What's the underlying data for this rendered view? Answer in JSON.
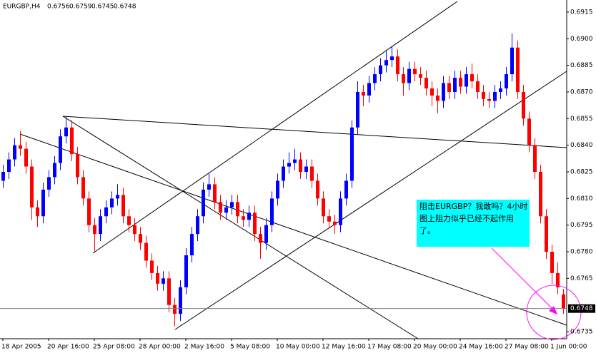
{
  "chart_data": {
    "type": "candlestick",
    "title": "EURGBP,H4",
    "up_color": "#0000ff",
    "down_color": "#ff0000",
    "ylim": [
      0.6731,
      0.6921
    ],
    "yticks": [
      0.6735,
      0.6765,
      {
        "value": 0.678,
        "label": "0.6780"
      },
      0.6795,
      {
        "value": 0.681,
        "label": "0.6810"
      },
      0.6825,
      {
        "value": 0.684,
        "label": "0.6840"
      },
      0.6855,
      {
        "value": 0.687,
        "label": "0.6870"
      },
      0.6885,
      {
        "value": 0.69,
        "label": "0.6900"
      },
      0.6915
    ],
    "xticks": [
      {
        "value": 0,
        "label": "18 Apr 2005"
      },
      {
        "value": 8,
        "label": "20 Apr 16:00"
      },
      {
        "value": 16,
        "label": "25 Apr 08:00"
      },
      {
        "value": 24,
        "label": "28 Apr 00:00"
      },
      {
        "value": 32,
        "label": "2 May 16:00"
      },
      {
        "value": 40,
        "label": "5 May 08:00"
      },
      {
        "value": 48,
        "label": "10 May 00:00"
      },
      {
        "value": 56,
        "label": "12 May 16:00"
      },
      {
        "value": 64,
        "label": "17 May 08:00"
      },
      {
        "value": 72,
        "label": "20 May 00:00"
      },
      {
        "value": 80,
        "label": "24 May 16:00"
      },
      {
        "value": 88,
        "label": "27 May 08:00"
      },
      {
        "value": 96,
        "label": "1 Jun 00:00"
      }
    ],
    "annotation": [
      "阻击EURGBP？我敢吗？4小时",
      "图上阻力似乎已经不起作用",
      "了。"
    ],
    "candles": [
      [
        0.682,
        0.6829,
        0.6816,
        0.6825
      ],
      [
        0.6825,
        0.6836,
        0.6821,
        0.6832
      ],
      [
        0.6832,
        0.6844,
        0.6828,
        0.684
      ],
      [
        0.684,
        0.6848,
        0.6834,
        0.6838
      ],
      [
        0.6838,
        0.6842,
        0.6824,
        0.6828
      ],
      [
        0.6828,
        0.6832,
        0.6798,
        0.6805
      ],
      [
        0.6805,
        0.6809,
        0.6794,
        0.68
      ],
      [
        0.68,
        0.6819,
        0.6796,
        0.6815
      ],
      [
        0.6815,
        0.6826,
        0.6811,
        0.6822
      ],
      [
        0.6822,
        0.6834,
        0.6818,
        0.683
      ],
      [
        0.683,
        0.6849,
        0.6826,
        0.6845
      ],
      [
        0.6845,
        0.6856,
        0.6841,
        0.685
      ],
      [
        0.685,
        0.6854,
        0.6831,
        0.6835
      ],
      [
        0.6835,
        0.6839,
        0.6818,
        0.6822
      ],
      [
        0.6822,
        0.6826,
        0.6806,
        0.681
      ],
      [
        0.681,
        0.6814,
        0.6791,
        0.6795
      ],
      [
        0.6795,
        0.6799,
        0.678,
        0.679
      ],
      [
        0.679,
        0.6804,
        0.6786,
        0.68
      ],
      [
        0.68,
        0.6809,
        0.6796,
        0.6805
      ],
      [
        0.6805,
        0.6814,
        0.6801,
        0.681
      ],
      [
        0.681,
        0.6818,
        0.6806,
        0.6812
      ],
      [
        0.6812,
        0.6816,
        0.6796,
        0.68
      ],
      [
        0.68,
        0.6804,
        0.6791,
        0.6795
      ],
      [
        0.6795,
        0.6799,
        0.6786,
        0.679
      ],
      [
        0.679,
        0.6794,
        0.6781,
        0.6785
      ],
      [
        0.6785,
        0.6789,
        0.6771,
        0.6775
      ],
      [
        0.6775,
        0.6779,
        0.6764,
        0.6768
      ],
      [
        0.6768,
        0.6772,
        0.6758,
        0.6762
      ],
      [
        0.6762,
        0.6769,
        0.6758,
        0.6765
      ],
      [
        0.6765,
        0.6769,
        0.6746,
        0.675
      ],
      [
        0.675,
        0.6754,
        0.6738,
        0.6745
      ],
      [
        0.6745,
        0.6764,
        0.6741,
        0.676
      ],
      [
        0.676,
        0.6782,
        0.6756,
        0.6778
      ],
      [
        0.6778,
        0.6794,
        0.6774,
        0.679
      ],
      [
        0.679,
        0.6804,
        0.6786,
        0.68
      ],
      [
        0.68,
        0.6819,
        0.6796,
        0.6815
      ],
      [
        0.6815,
        0.6824,
        0.6811,
        0.6818
      ],
      [
        0.6818,
        0.6822,
        0.6804,
        0.6808
      ],
      [
        0.6808,
        0.6812,
        0.6798,
        0.6802
      ],
      [
        0.6802,
        0.6809,
        0.6798,
        0.6805
      ],
      [
        0.6805,
        0.6812,
        0.6801,
        0.6808
      ],
      [
        0.6808,
        0.6812,
        0.6796,
        0.68
      ],
      [
        0.68,
        0.6804,
        0.6794,
        0.6798
      ],
      [
        0.6798,
        0.6806,
        0.6794,
        0.6802
      ],
      [
        0.6802,
        0.6806,
        0.6786,
        0.679
      ],
      [
        0.679,
        0.6794,
        0.6776,
        0.6785
      ],
      [
        0.6785,
        0.6799,
        0.6781,
        0.6795
      ],
      [
        0.6795,
        0.6814,
        0.6791,
        0.681
      ],
      [
        0.681,
        0.6824,
        0.6806,
        0.682
      ],
      [
        0.682,
        0.6832,
        0.6816,
        0.6828
      ],
      [
        0.6828,
        0.6836,
        0.6824,
        0.683
      ],
      [
        0.683,
        0.6838,
        0.6826,
        0.6832
      ],
      [
        0.6832,
        0.6836,
        0.6821,
        0.6825
      ],
      [
        0.6825,
        0.6832,
        0.6821,
        0.6828
      ],
      [
        0.6828,
        0.6832,
        0.6816,
        0.682
      ],
      [
        0.682,
        0.6824,
        0.6806,
        0.681
      ],
      [
        0.681,
        0.6814,
        0.6796,
        0.68
      ],
      [
        0.68,
        0.6804,
        0.6793,
        0.6797
      ],
      [
        0.6797,
        0.6801,
        0.679,
        0.6795
      ],
      [
        0.6795,
        0.6814,
        0.6791,
        0.681
      ],
      [
        0.681,
        0.6824,
        0.6806,
        0.682
      ],
      [
        0.682,
        0.6854,
        0.6816,
        0.685
      ],
      [
        0.685,
        0.6876,
        0.6846,
        0.687
      ],
      [
        0.687,
        0.6874,
        0.6862,
        0.6868
      ],
      [
        0.6868,
        0.6879,
        0.6864,
        0.6875
      ],
      [
        0.6875,
        0.6884,
        0.6871,
        0.688
      ],
      [
        0.688,
        0.6889,
        0.6876,
        0.6885
      ],
      [
        0.6885,
        0.6893,
        0.6881,
        0.6888
      ],
      [
        0.6888,
        0.6896,
        0.6884,
        0.689
      ],
      [
        0.689,
        0.6894,
        0.6876,
        0.688
      ],
      [
        0.688,
        0.6884,
        0.6868,
        0.6875
      ],
      [
        0.6875,
        0.6887,
        0.6871,
        0.6883
      ],
      [
        0.6883,
        0.6887,
        0.6876,
        0.688
      ],
      [
        0.688,
        0.6884,
        0.6874,
        0.6878
      ],
      [
        0.6878,
        0.6882,
        0.6868,
        0.6872
      ],
      [
        0.6872,
        0.6876,
        0.6862,
        0.6868
      ],
      [
        0.6868,
        0.6872,
        0.6858,
        0.6865
      ],
      [
        0.6865,
        0.6879,
        0.6861,
        0.6875
      ],
      [
        0.6875,
        0.6879,
        0.6866,
        0.687
      ],
      [
        0.687,
        0.6882,
        0.6866,
        0.6878
      ],
      [
        0.6878,
        0.6882,
        0.6869,
        0.6873
      ],
      [
        0.6873,
        0.6884,
        0.6869,
        0.688
      ],
      [
        0.688,
        0.6886,
        0.6872,
        0.6876
      ],
      [
        0.6876,
        0.688,
        0.6866,
        0.687
      ],
      [
        0.687,
        0.6874,
        0.6862,
        0.6866
      ],
      [
        0.6866,
        0.687,
        0.6861,
        0.6865
      ],
      [
        0.6865,
        0.6874,
        0.6861,
        0.687
      ],
      [
        0.687,
        0.6876,
        0.6866,
        0.6872
      ],
      [
        0.6872,
        0.6884,
        0.6868,
        0.688
      ],
      [
        0.688,
        0.6903,
        0.6876,
        0.6895
      ],
      [
        0.6895,
        0.6899,
        0.6866,
        0.687
      ],
      [
        0.687,
        0.6874,
        0.6851,
        0.6855
      ],
      [
        0.6855,
        0.6859,
        0.6836,
        0.684
      ],
      [
        0.684,
        0.6844,
        0.6821,
        0.6825
      ],
      [
        0.6825,
        0.6829,
        0.6796,
        0.68
      ],
      [
        0.68,
        0.6804,
        0.6776,
        0.678
      ],
      [
        0.678,
        0.6784,
        0.6762,
        0.6768
      ],
      [
        0.6768,
        0.6774,
        0.6756,
        0.676
      ],
      [
        0.6756,
        0.6759,
        0.6745,
        0.6748
      ]
    ]
  }
}
